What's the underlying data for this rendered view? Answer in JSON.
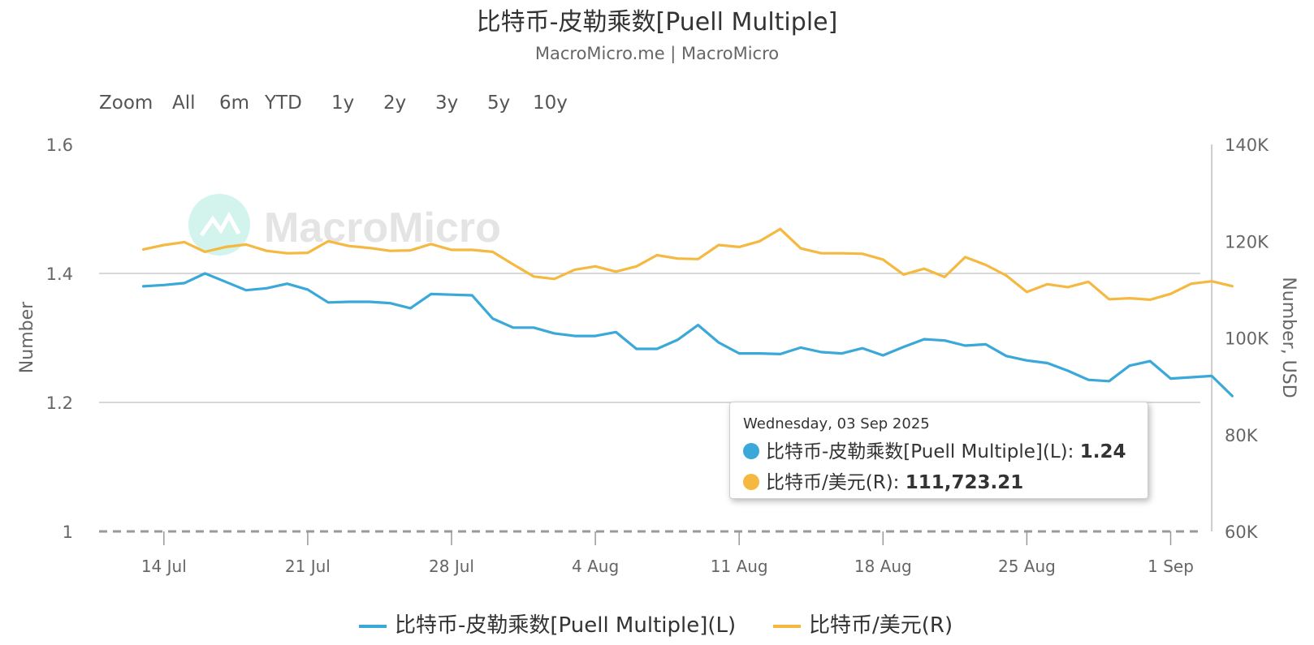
{
  "header": {
    "title": "比特币-皮勒乘数[Puell Multiple]",
    "subtitle": "MacroMicro.me | MacroMicro"
  },
  "zoom": {
    "label": "Zoom",
    "buttons": [
      "All",
      "6m",
      "YTD",
      "1y",
      "2y",
      "3y",
      "5y",
      "10y"
    ]
  },
  "watermark": "MacroMicro",
  "tooltip": {
    "date": "Wednesday, 03 Sep 2025",
    "rows": [
      {
        "label": "比特币-皮勒乘数[Puell Multiple](L): ",
        "value": "1.24",
        "color": "#3aa8d8"
      },
      {
        "label": "比特币/美元(R): ",
        "value": "111,723.21",
        "color": "#f5b942"
      }
    ]
  },
  "chart_data": {
    "type": "line",
    "x_tick_labels": [
      "14 Jul",
      "21 Jul",
      "28 Jul",
      "4 Aug",
      "11 Aug",
      "18 Aug",
      "25 Aug",
      "1 Sep"
    ],
    "y_left": {
      "label": "Number",
      "ticks": [
        "1",
        "1.2",
        "1.4",
        "1.6"
      ],
      "range": [
        1.0,
        1.6
      ]
    },
    "y_right": {
      "label": "Number, USD",
      "ticks": [
        "60K",
        "80K",
        "100K",
        "120K",
        "140K"
      ],
      "range": [
        60000,
        140000
      ]
    },
    "grid": true,
    "legend_position": "bottom-center",
    "x": [
      "2025-07-13",
      "2025-07-14",
      "2025-07-15",
      "2025-07-16",
      "2025-07-17",
      "2025-07-18",
      "2025-07-19",
      "2025-07-20",
      "2025-07-21",
      "2025-07-22",
      "2025-07-23",
      "2025-07-24",
      "2025-07-25",
      "2025-07-26",
      "2025-07-27",
      "2025-07-28",
      "2025-07-29",
      "2025-07-30",
      "2025-07-31",
      "2025-08-01",
      "2025-08-02",
      "2025-08-03",
      "2025-08-04",
      "2025-08-05",
      "2025-08-06",
      "2025-08-07",
      "2025-08-08",
      "2025-08-09",
      "2025-08-10",
      "2025-08-11",
      "2025-08-12",
      "2025-08-13",
      "2025-08-14",
      "2025-08-15",
      "2025-08-16",
      "2025-08-17",
      "2025-08-18",
      "2025-08-19",
      "2025-08-20",
      "2025-08-21",
      "2025-08-22",
      "2025-08-23",
      "2025-08-24",
      "2025-08-25",
      "2025-08-26",
      "2025-08-27",
      "2025-08-28",
      "2025-08-29",
      "2025-08-30",
      "2025-08-31",
      "2025-09-01",
      "2025-09-02",
      "2025-09-03",
      "2025-09-04"
    ],
    "series": [
      {
        "name": "比特币-皮勒乘数[Puell Multiple](L)",
        "axis": "left",
        "color": "#3aa8d8",
        "values": [
          1.38,
          1.382,
          1.385,
          1.4,
          1.387,
          1.374,
          1.377,
          1.384,
          1.375,
          1.355,
          1.356,
          1.356,
          1.354,
          1.346,
          1.368,
          1.367,
          1.366,
          1.33,
          1.316,
          1.316,
          1.307,
          1.303,
          1.303,
          1.309,
          1.283,
          1.283,
          1.297,
          1.32,
          1.293,
          1.276,
          1.276,
          1.275,
          1.285,
          1.278,
          1.276,
          1.284,
          1.273,
          1.286,
          1.298,
          1.296,
          1.288,
          1.29,
          1.272,
          1.265,
          1.261,
          1.249,
          1.235,
          1.233,
          1.257,
          1.264,
          1.237,
          1.239,
          1.241,
          1.21
        ]
      },
      {
        "name": "比特币/美元(R)",
        "axis": "right",
        "color": "#f5b942",
        "values": [
          118300,
          119200,
          119800,
          117800,
          118800,
          119300,
          118000,
          117500,
          117600,
          120000,
          119000,
          118600,
          118000,
          118100,
          119400,
          118200,
          118200,
          117800,
          115200,
          112700,
          112200,
          114100,
          114800,
          113700,
          114800,
          117100,
          116400,
          116300,
          119200,
          118800,
          120000,
          122500,
          118500,
          117500,
          117500,
          117400,
          116200,
          113100,
          114300,
          112600,
          116700,
          115100,
          112900,
          109500,
          111100,
          110500,
          111600,
          108000,
          108200,
          107900,
          109100,
          111200,
          111700,
          110700
        ]
      }
    ]
  }
}
